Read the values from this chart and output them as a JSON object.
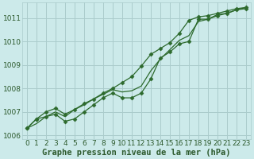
{
  "xlabel": "Graphe pression niveau de la mer (hPa)",
  "x": [
    0,
    1,
    2,
    3,
    4,
    5,
    6,
    7,
    8,
    9,
    10,
    11,
    12,
    13,
    14,
    15,
    16,
    17,
    18,
    19,
    20,
    21,
    22,
    23
  ],
  "line1": [
    1006.3,
    1006.7,
    1006.8,
    1006.9,
    1006.6,
    1006.7,
    1007.0,
    1007.3,
    1007.6,
    1007.8,
    1007.6,
    1007.6,
    1007.8,
    1008.4,
    1009.3,
    1009.55,
    1009.9,
    1010.0,
    1010.95,
    1010.95,
    1011.1,
    1011.2,
    1011.35,
    1011.4
  ],
  "line2": [
    1006.3,
    1006.7,
    1007.0,
    1007.15,
    1006.9,
    1007.1,
    1007.35,
    1007.55,
    1007.8,
    1008.0,
    1008.25,
    1008.5,
    1008.95,
    1009.45,
    1009.7,
    1009.95,
    1010.35,
    1010.9,
    1011.05,
    1011.1,
    1011.2,
    1011.3,
    1011.4,
    1011.45
  ],
  "line3": [
    1006.3,
    1006.5,
    1006.8,
    1007.0,
    1006.8,
    1007.1,
    1007.3,
    1007.55,
    1007.75,
    1007.95,
    1007.85,
    1007.9,
    1008.1,
    1008.75,
    1009.25,
    1009.65,
    1010.05,
    1010.25,
    1010.85,
    1010.95,
    1011.15,
    1011.2,
    1011.35,
    1011.45
  ],
  "line_color": "#2d6a2d",
  "bg_color": "#cceaea",
  "grid_color": "#aacccc",
  "text_color": "#2d5a2d",
  "ylim": [
    1005.85,
    1011.65
  ],
  "yticks": [
    1006,
    1007,
    1008,
    1009,
    1010,
    1011
  ],
  "xticks": [
    0,
    1,
    2,
    3,
    4,
    5,
    6,
    7,
    8,
    9,
    10,
    11,
    12,
    13,
    14,
    15,
    16,
    17,
    18,
    19,
    20,
    21,
    22,
    23
  ],
  "marker": "D",
  "markersize": 2.5,
  "linewidth": 0.9,
  "xlabel_fontsize": 7.5,
  "tick_fontsize": 6.5
}
